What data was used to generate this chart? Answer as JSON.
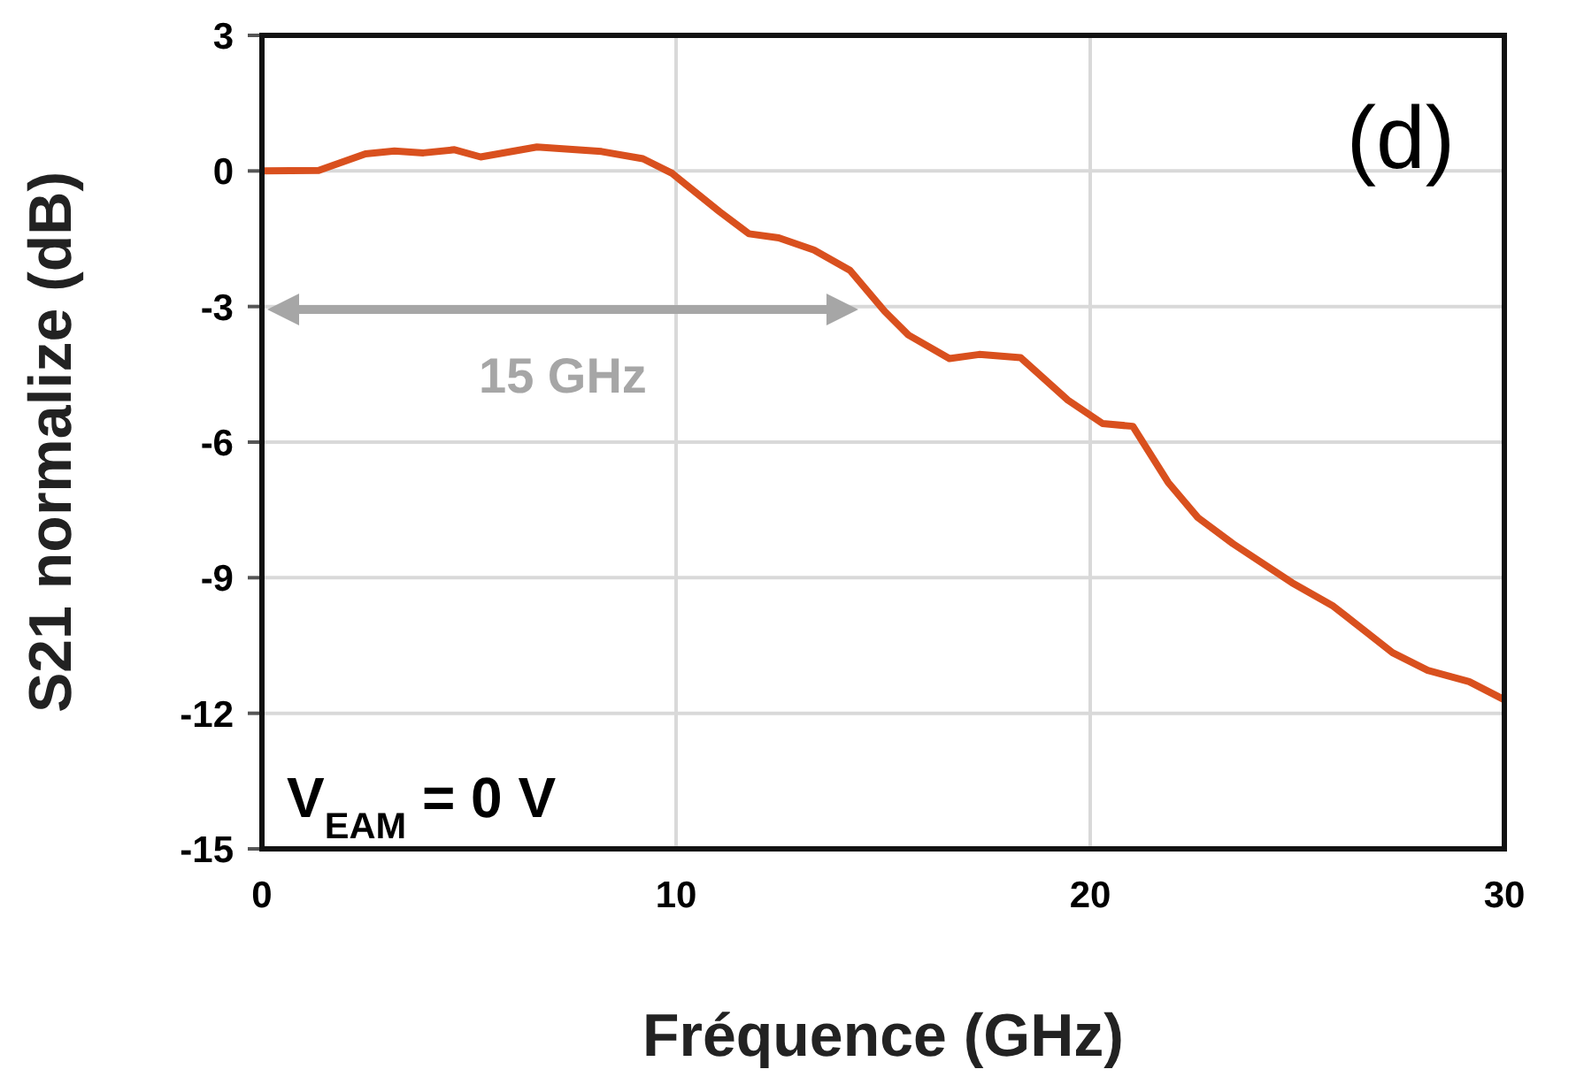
{
  "chart_data": {
    "type": "line",
    "xlabel": "Fréquence (GHz)",
    "ylabel": "S21 normalize (dB)",
    "xlim": [
      0,
      30
    ],
    "xticks": [
      0,
      10,
      20,
      30
    ],
    "ylim": [
      -15,
      3
    ],
    "yticks": [
      -15,
      -12,
      -9,
      -6,
      -3,
      0,
      3
    ],
    "grid": true,
    "legend": false,
    "marker": "none",
    "line_style": "solid",
    "annotations": [
      "(d)",
      "V$_{EAM}$ = 0 V",
      "15 GHz"
    ],
    "series": [
      {
        "color": "#d9501e",
        "x": [
          0,
          1.37,
          2.5,
          3.2,
          3.9,
          4.65,
          5.28,
          6.64,
          8.2,
          9.2,
          9.9,
          11.05,
          11.76,
          12.48,
          13.33,
          14.2,
          15.04,
          15.61,
          16.6,
          17.32,
          18.32,
          19.46,
          20.3,
          21.03,
          21.88,
          22.6,
          23.45,
          24.87,
          25.87,
          26.58,
          27.3,
          28.15,
          29.15,
          30
        ],
        "values": [
          0,
          0.01,
          0.38,
          0.44,
          0.4,
          0.47,
          0.31,
          0.53,
          0.43,
          0.27,
          -0.05,
          -0.9,
          -1.39,
          -1.48,
          -1.75,
          -2.2,
          -3.11,
          -3.63,
          -4.15,
          -4.06,
          -4.13,
          -5.07,
          -5.59,
          -5.65,
          -6.89,
          -7.67,
          -8.25,
          -9.11,
          -9.63,
          -10.14,
          -10.66,
          -11.05,
          -11.3,
          -11.7
        ]
      }
    ]
  }
}
